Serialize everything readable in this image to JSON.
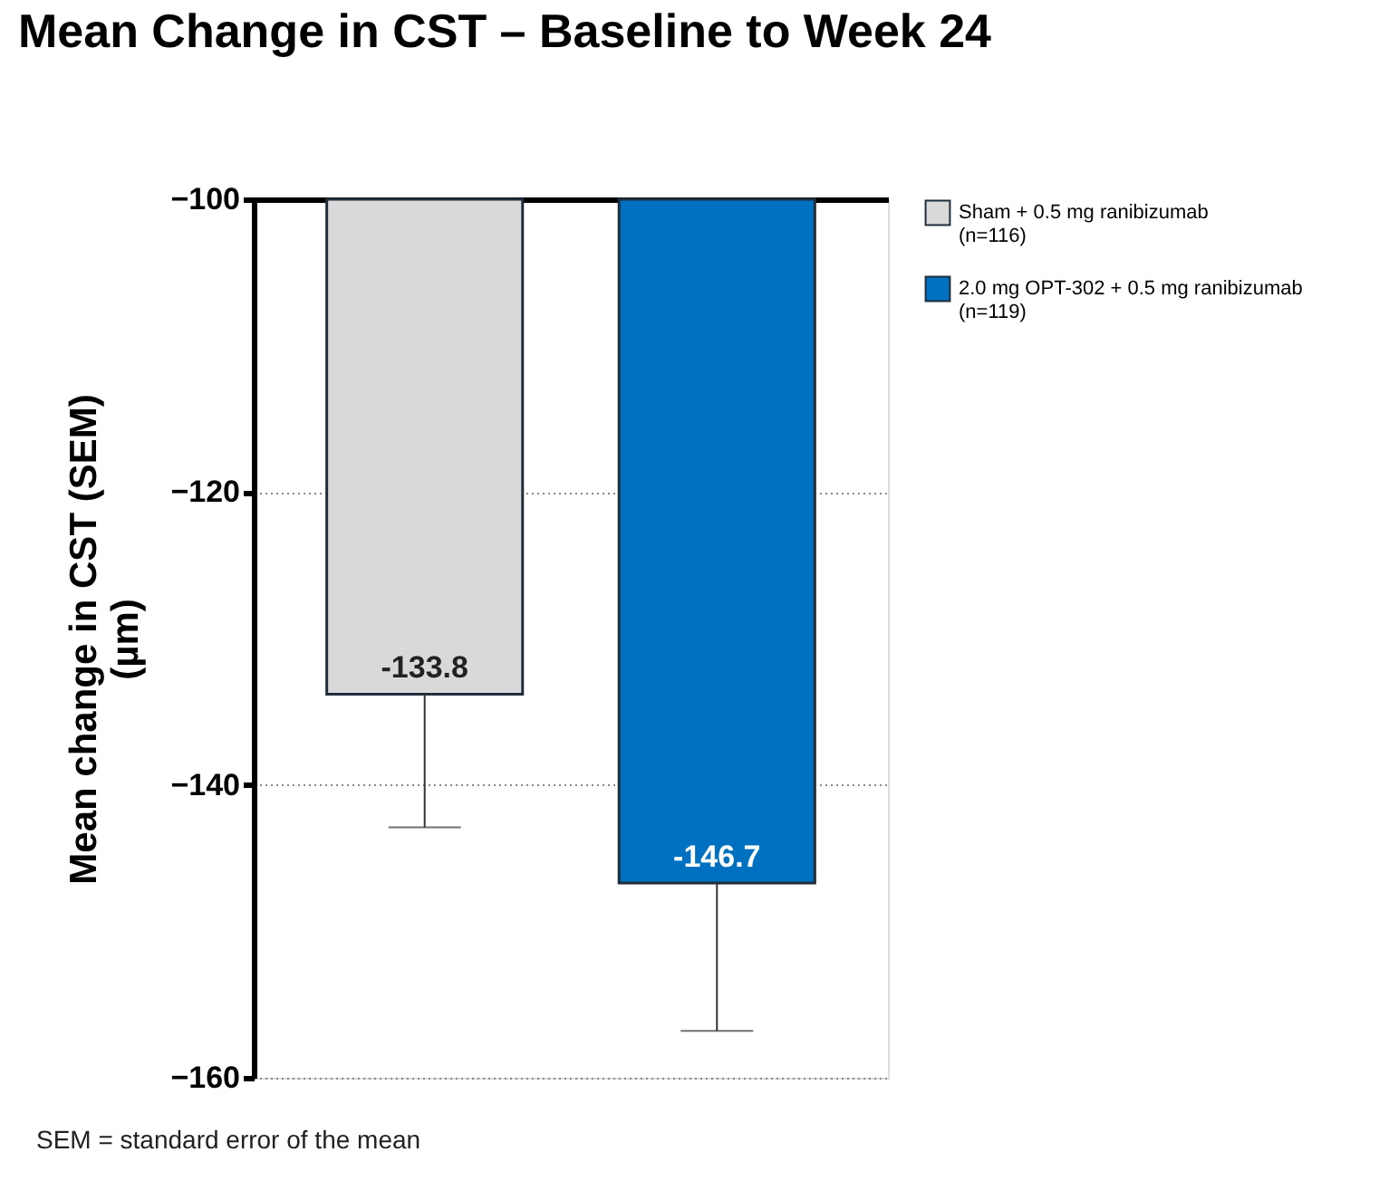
{
  "chart_data": {
    "type": "bar",
    "title": "Mean Change in CST – Baseline to Week 24",
    "ylabel": "Mean change in CST (SEM)\n(µm)",
    "categories": [
      null,
      null
    ],
    "series": [
      {
        "name": "Sham + 0.5 mg ranibizumab\n(n=116)",
        "color": "#d9d9d9",
        "values": [
          -133.8,
          null
        ],
        "errors": [
          9.1,
          null
        ]
      },
      {
        "name": "2.0 mg OPT-302 + 0.5 mg ranibizumab\n(n=119)",
        "color": "#0070c0",
        "values": [
          null,
          -146.7
        ],
        "errors": [
          null,
          10.1
        ]
      }
    ],
    "ylim": [
      -160,
      -100
    ],
    "yticks": [
      -160,
      -140,
      -120,
      -100
    ],
    "grid": "y",
    "legend": "top right",
    "tick_labels": "y",
    "data_labels": true,
    "annotations": [
      "SEM = standard error of the mean"
    ]
  }
}
